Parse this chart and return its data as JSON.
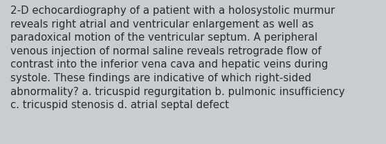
{
  "lines": [
    "2-D echocardiography of a patient with a holosystolic murmur",
    "reveals right atrial and ventricular enlargement as well as",
    "paradoxical motion of the ventricular septum. A peripheral",
    "venous injection of normal saline reveals retrograde flow of",
    "contrast into the inferior vena cava and hepatic veins during",
    "systole. These findings are indicative of which right-sided",
    "abnormality? a. tricuspid regurgitation b. pulmonic insufficiency",
    "c. tricuspid stenosis d. atrial septal defect"
  ],
  "background_color": "#c8cdd0",
  "text_color": "#2b2b2b",
  "font_size": 10.8,
  "fig_width": 5.58,
  "fig_height": 2.09,
  "dpi": 100
}
